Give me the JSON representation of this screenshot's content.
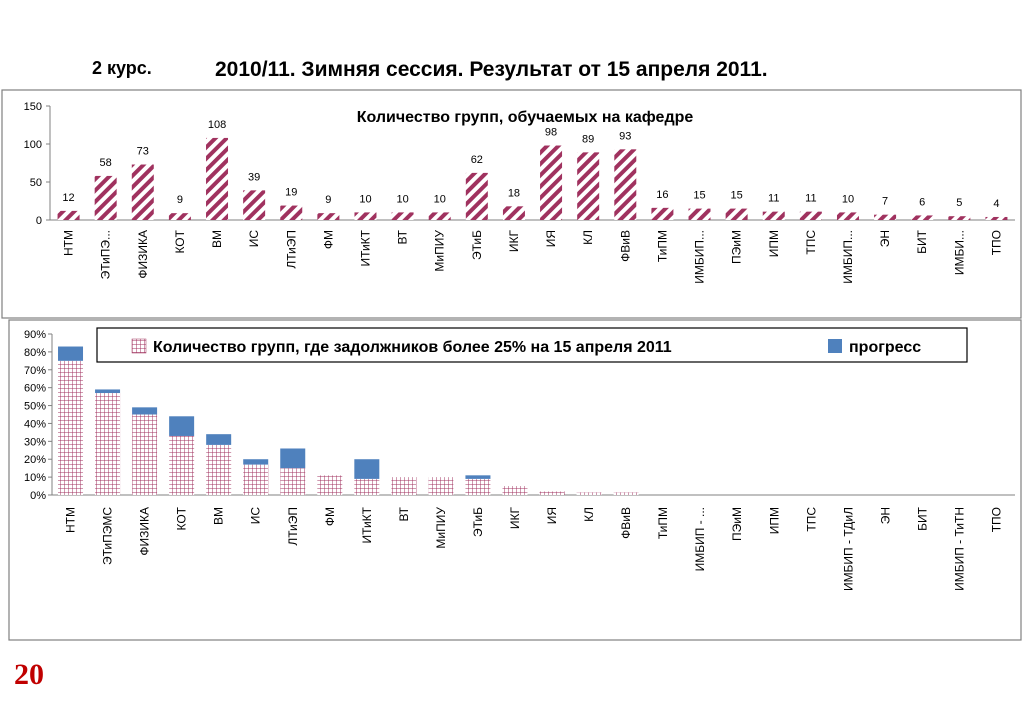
{
  "header": {
    "course": "2 курс.",
    "title": "2010/11. Зимняя сессия. Результат от 15 апреля 2011."
  },
  "page_number": "20",
  "chart_data": [
    {
      "type": "bar",
      "title": "Количество групп, обучаемых на кафедре",
      "xlabel": "",
      "ylabel": "",
      "ylim": [
        0,
        150
      ],
      "yticks": [
        0,
        50,
        100,
        150
      ],
      "categories": [
        "НТМ",
        "ЭТиПЭ...",
        "ФИЗИКА",
        "КОТ",
        "ВМ",
        "ИС",
        "ЛТиЭП",
        "ФМ",
        "ИТиКТ",
        "ВТ",
        "МиПИУ",
        "ЭТиБ",
        "ИКГ",
        "ИЯ",
        "КЛ",
        "ФВиВ",
        "ТиПМ",
        "ИМБИП...",
        "ПЭиМ",
        "ИПМ",
        "ТПС",
        "ИМБИП...",
        "ЭН",
        "БИТ",
        "ИМБИ...",
        "ТПО"
      ],
      "values": [
        12,
        58,
        73,
        9,
        108,
        39,
        19,
        9,
        10,
        10,
        10,
        62,
        18,
        98,
        89,
        93,
        16,
        15,
        15,
        11,
        11,
        10,
        7,
        6,
        5,
        4
      ],
      "data_labels": [
        "12",
        "58",
        "73",
        "9",
        "108",
        "39",
        "19",
        "9",
        "10",
        "10",
        "10",
        "62",
        "18",
        "98",
        "89",
        "93",
        "16",
        "15",
        "15",
        "11",
        "11",
        "10",
        "7",
        "6",
        "5",
        "4"
      ],
      "bar_color": "#a0325f",
      "bar_pattern": "diagonal-stripes",
      "grid": false
    },
    {
      "type": "bar",
      "stacked": true,
      "title": "",
      "xlabel": "",
      "ylabel": "",
      "ylim": [
        0,
        90
      ],
      "yticks": [
        "0%",
        "10%",
        "20%",
        "30%",
        "40%",
        "50%",
        "60%",
        "70%",
        "80%",
        "90%"
      ],
      "categories": [
        "НТМ",
        "ЭТиПЭМС",
        "ФИЗИКА",
        "КОТ",
        "ВМ",
        "ИС",
        "ЛТиЭП",
        "ФМ",
        "ИТиКТ",
        "ВТ",
        "МиПИУ",
        "ЭТиБ",
        "ИКГ",
        "ИЯ",
        "КЛ",
        "ФВиВ",
        "ТиПМ",
        "ИМБИП - ...",
        "ПЭиМ",
        "ИПМ",
        "ТПС",
        "ИМБИП - ТДиЛ",
        "ЭН",
        "БИТ",
        "ИМБИП - ТиТН",
        "ТПО"
      ],
      "series": [
        {
          "name": "Количество групп, где задолжников более  25% на 15 апреля 2011",
          "values": [
            75,
            57,
            45,
            33,
            28,
            17,
            15,
            11,
            9,
            10,
            10,
            9,
            5,
            2,
            1.5,
            1.5,
            0,
            0,
            0,
            0,
            0,
            0,
            0,
            0,
            0,
            0
          ],
          "color": "#a0325f",
          "pattern": "grid"
        },
        {
          "name": "прогресс",
          "values": [
            8,
            2,
            4,
            11,
            6,
            3,
            11,
            0,
            11,
            0,
            0,
            2,
            0,
            0,
            0,
            0,
            0,
            0,
            0,
            0,
            0,
            0,
            0,
            0,
            0,
            0
          ],
          "color": "#4f81bd",
          "pattern": "solid"
        }
      ],
      "legend": "top",
      "grid": false
    }
  ]
}
